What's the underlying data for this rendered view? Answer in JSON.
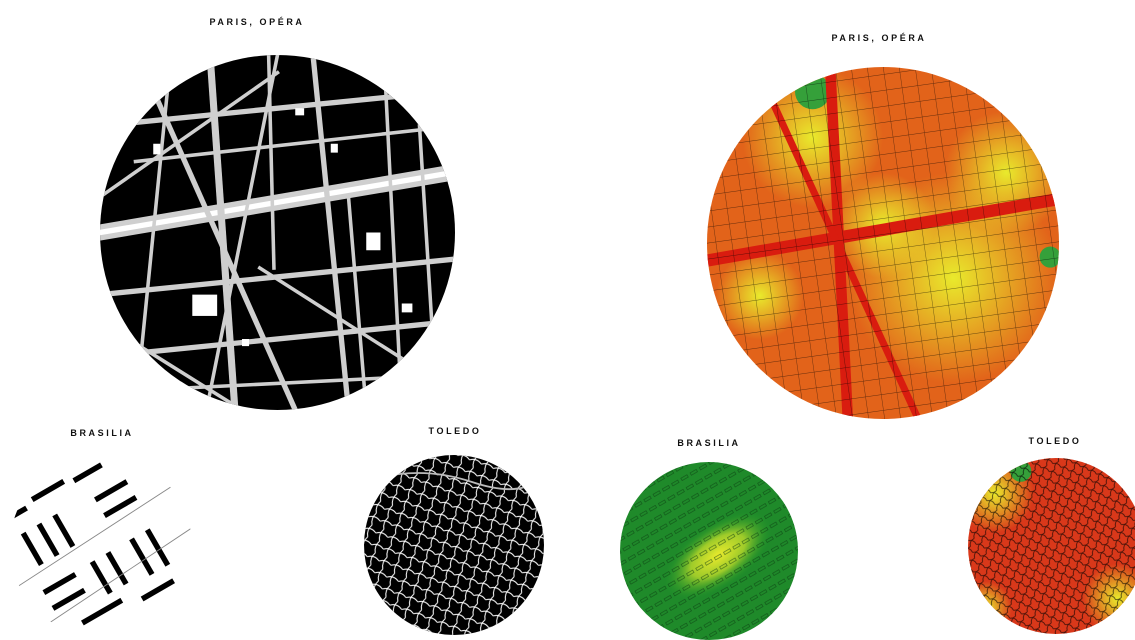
{
  "panels": {
    "paris_figure": {
      "title": "PARIS, OPÉRA"
    },
    "paris_heat": {
      "title": "PARIS, OPÉRA"
    },
    "brasilia_figure": {
      "title": "BRASILIA"
    },
    "toledo_figure": {
      "title": "TOLEDO"
    },
    "brasilia_heat": {
      "title": "BRASILIA"
    },
    "toledo_heat": {
      "title": "TOLEDO"
    }
  },
  "colors": {
    "figure_ground_fill": "#000000",
    "figure_ground_streets": "#cfcfcf",
    "heat_high": "#d91c0f",
    "heat_mid": "#f28a18",
    "heat_low": "#e9ea2c",
    "heat_green": "#1e9a2a",
    "background": "#ffffff"
  }
}
